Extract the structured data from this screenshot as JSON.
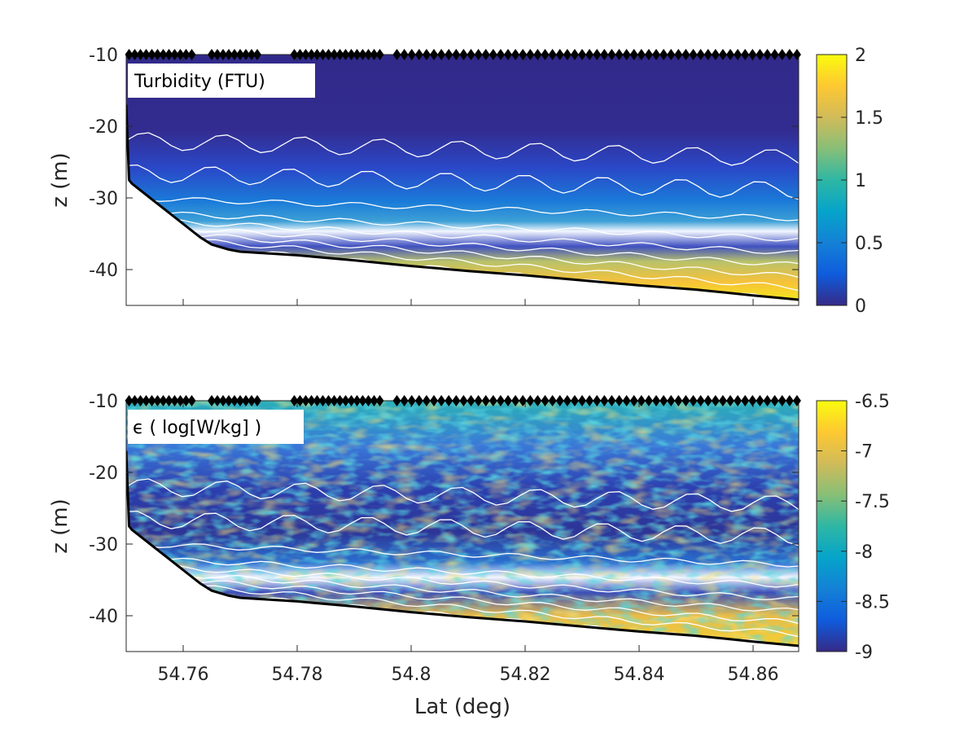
{
  "chart_data": [
    {
      "type": "heatmap",
      "title": "Turbidity (FTU)",
      "xlabel": "",
      "ylabel": "z (m)",
      "xlim": [
        54.75,
        54.868
      ],
      "ylim": [
        -45,
        -10
      ],
      "x_ticks": [
        54.76,
        54.78,
        54.8,
        54.82,
        54.84,
        54.86
      ],
      "x_tick_labels": [],
      "y_ticks": [
        -10,
        -20,
        -30,
        -40
      ],
      "y_tick_labels": [
        "-10",
        "-20",
        "-30",
        "-40"
      ],
      "colorbar": {
        "min": 0,
        "max": 2,
        "ticks": [
          0,
          0.5,
          1,
          1.5,
          2
        ],
        "tick_labels": [
          "0",
          "0.5",
          "1",
          "1.5",
          "2"
        ],
        "colormap": "parula"
      },
      "colors": {
        "low": "#352a87",
        "high": "#f9fb0e",
        "contour": "#ffffff",
        "bottom": "#000000"
      }
    },
    {
      "type": "heatmap",
      "title": "ϵ ( log[W/kg] )",
      "xlabel": "Lat (deg)",
      "ylabel": "z (m)",
      "xlim": [
        54.75,
        54.868
      ],
      "ylim": [
        -45,
        -10
      ],
      "x_ticks": [
        54.76,
        54.78,
        54.8,
        54.82,
        54.84,
        54.86
      ],
      "x_tick_labels": [
        "54.76",
        "54.78",
        "54.8",
        "54.82",
        "54.84",
        "54.86"
      ],
      "y_ticks": [
        -10,
        -20,
        -30,
        -40
      ],
      "y_tick_labels": [
        "-10",
        "-20",
        "-30",
        "-40"
      ],
      "colorbar": {
        "min": -9,
        "max": -6.5,
        "ticks": [
          -9,
          -8.5,
          -8,
          -7.5,
          -7,
          -6.5
        ],
        "tick_labels": [
          "-9",
          "-8.5",
          "-8",
          "-7.5",
          "-7",
          "-6.5"
        ],
        "colormap": "parula"
      },
      "colors": {
        "low": "#352a87",
        "high": "#f9fb0e",
        "contour": "#ffffff",
        "bottom": "#000000"
      }
    }
  ],
  "bottom_depth": {
    "lat": [
      54.75,
      54.7505,
      54.751,
      54.755,
      54.763,
      54.765,
      54.768,
      54.77,
      54.78,
      54.79,
      54.8,
      54.81,
      54.82,
      54.83,
      54.84,
      54.85,
      54.86,
      54.868
    ],
    "z": [
      -17,
      -27.5,
      -28,
      -30.5,
      -35.5,
      -36.5,
      -37.2,
      -37.5,
      -38,
      -38.7,
      -39.5,
      -40.2,
      -40.8,
      -41.5,
      -42.2,
      -42.8,
      -43.6,
      -44.2
    ]
  },
  "profile_stations_lat": [
    54.7505,
    54.7515,
    54.7525,
    54.7535,
    54.7545,
    54.7555,
    54.7565,
    54.7575,
    54.7585,
    54.7595,
    54.7605,
    54.7615,
    54.765,
    54.766,
    54.767,
    54.768,
    54.769,
    54.77,
    54.771,
    54.772,
    54.773,
    54.7795,
    54.7805,
    54.7815,
    54.7825,
    54.7835,
    54.7845,
    54.7855,
    54.7865,
    54.7875,
    54.7885,
    54.7895,
    54.7905,
    54.7915,
    54.7925,
    54.7935,
    54.7945,
    54.7975,
    54.7988,
    54.8001,
    54.8014,
    54.8027,
    54.804,
    54.8053,
    54.8066,
    54.8079,
    54.8092,
    54.8105,
    54.8118,
    54.8131,
    54.8144,
    54.8157,
    54.817,
    54.8183,
    54.8196,
    54.8209,
    54.8222,
    54.8235,
    54.8248,
    54.8261,
    54.8274,
    54.8287,
    54.83,
    54.8313,
    54.8326,
    54.8339,
    54.8352,
    54.8365,
    54.8378,
    54.8391,
    54.8404,
    54.8417,
    54.843,
    54.8443,
    54.8456,
    54.8469,
    54.8482,
    54.8495,
    54.8508,
    54.8521,
    54.8534,
    54.8547,
    54.856,
    54.8573,
    54.8586,
    54.8599,
    54.8612,
    54.8625,
    54.8638,
    54.8651,
    54.8664,
    54.8677
  ]
}
